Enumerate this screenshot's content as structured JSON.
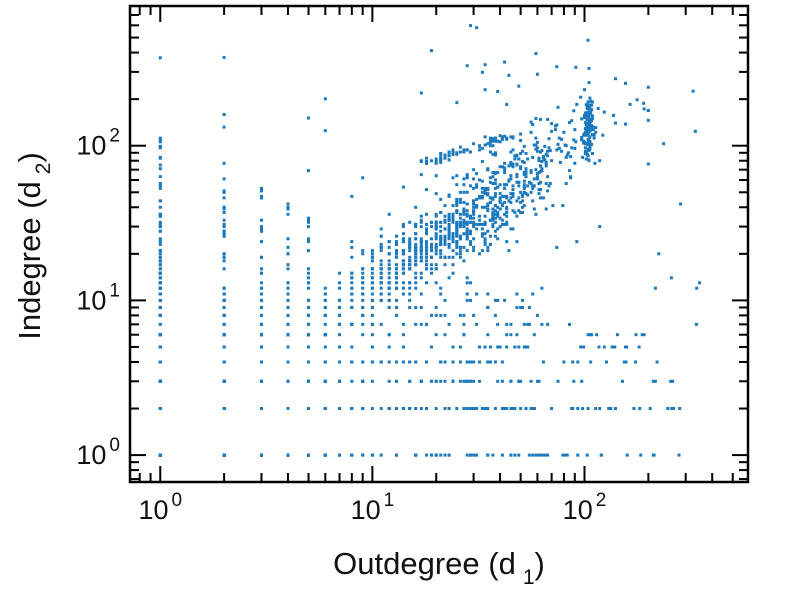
{
  "chart_data": {
    "type": "scatter",
    "title": "",
    "xlabel": "Outdegree (d1)",
    "ylabel": "Indegree (d2)",
    "xlabel_parts": {
      "text": "Outdegree (d",
      "sub": "1",
      "close": ")"
    },
    "ylabel_parts": {
      "text": "Indegree (d",
      "sub": "2",
      "close": ")"
    },
    "x_scale": "log",
    "y_scale": "log",
    "xlim": [
      0.72,
      590
    ],
    "ylim": [
      0.67,
      800
    ],
    "grid": false,
    "legend": "none",
    "x_major_ticks": [
      {
        "value": 1,
        "label": "10",
        "exp": "0"
      },
      {
        "value": 10,
        "label": "10",
        "exp": "1"
      },
      {
        "value": 100,
        "label": "10",
        "exp": "2"
      }
    ],
    "y_major_ticks": [
      {
        "value": 1,
        "label": "10",
        "exp": "0"
      },
      {
        "value": 10,
        "label": "10",
        "exp": "1"
      },
      {
        "value": 100,
        "label": "10",
        "exp": "2"
      }
    ],
    "marker": {
      "shape": "square",
      "size": 3,
      "color": "#1c79be"
    },
    "frame_color": "#000000",
    "seed": 7,
    "points_are_integer_degrees": true,
    "clusters": [
      {
        "name": "main-diagonal-cloud",
        "type": "diag",
        "n": 900,
        "mx": 1.42,
        "sx": 0.3,
        "slope": 0.95,
        "intercept": 0.17,
        "sy": 0.14,
        "lxclip": [
          0.0,
          2.3
        ]
      },
      {
        "name": "low-degree-grid",
        "type": "grid",
        "n": 520,
        "lxmin": 0.0,
        "lxmax": 1.8,
        "lymax": 1.08
      },
      {
        "name": "low-degree-grid-right",
        "type": "grid",
        "n": 70,
        "lxmin": 1.8,
        "lxmax": 2.45,
        "lymax": 0.9
      },
      {
        "name": "stripe-x1",
        "type": "stripe",
        "x": 1,
        "n": 95,
        "lymin": 0.0,
        "lymax": 2.08
      },
      {
        "name": "stripe-x2",
        "type": "stripe",
        "x": 2,
        "n": 55,
        "lymin": 0.0,
        "lymax": 1.85
      },
      {
        "name": "stripe-x3",
        "type": "stripe",
        "x": 3,
        "n": 45,
        "lymin": 0.0,
        "lymax": 1.75
      },
      {
        "name": "stripe-x4",
        "type": "stripe",
        "x": 4,
        "n": 38,
        "lymin": 0.0,
        "lymax": 1.65
      },
      {
        "name": "stripe-x5",
        "type": "stripe",
        "x": 5,
        "n": 32,
        "lymin": 0.0,
        "lymax": 1.6
      },
      {
        "name": "right-dense-clump",
        "type": "blob",
        "n": 110,
        "mx": 2.02,
        "sx": 0.013,
        "my": 2.13,
        "sy": 0.1
      },
      {
        "name": "upper-diagonal-streak",
        "type": "line",
        "n": 65,
        "lxmin": 1.22,
        "lxmax": 1.66,
        "slope": 0.45,
        "intercept": 1.33,
        "sy": 0.018
      },
      {
        "name": "sparse-outliers",
        "type": "uniform",
        "n": 85,
        "lxmin": -0.05,
        "lxmax": 2.6,
        "lymin": 0.0,
        "lymax": 2.6
      },
      {
        "name": "top-outliers",
        "type": "uniform",
        "n": 14,
        "lxmin": 1.05,
        "lxmax": 2.2,
        "lymin": 2.35,
        "lymax": 2.88
      }
    ]
  }
}
